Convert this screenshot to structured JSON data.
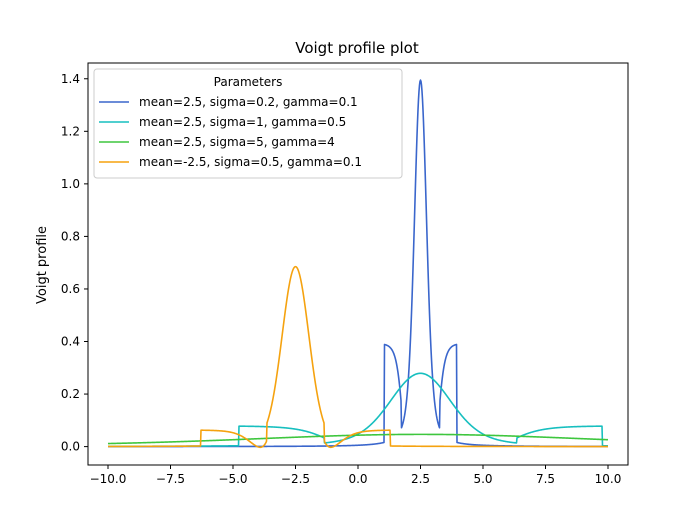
{
  "chart_data": {
    "type": "line",
    "title": "Voigt profile plot",
    "xlabel": "",
    "ylabel": "Voigt profile",
    "xlim": [
      -10.8,
      10.8
    ],
    "ylim": [
      -0.07,
      1.46
    ],
    "x_ticks": [
      -10.0,
      -7.5,
      -5.0,
      -2.5,
      0.0,
      2.5,
      5.0,
      7.5,
      10.0
    ],
    "x_tick_labels": [
      "−10.0",
      "−7.5",
      "−5.0",
      "−2.5",
      "0.0",
      "2.5",
      "5.0",
      "7.5",
      "10.0"
    ],
    "y_ticks": [
      0.0,
      0.2,
      0.4,
      0.6,
      0.8,
      1.0,
      1.2,
      1.4
    ],
    "y_tick_labels": [
      "0.0",
      "0.2",
      "0.4",
      "0.6",
      "0.8",
      "1.0",
      "1.2",
      "1.4"
    ],
    "grid": false,
    "legend": {
      "title": "Parameters",
      "placement": "top-left"
    },
    "series": [
      {
        "name": "mean=2.5, sigma=0.2, gamma=0.1",
        "color": "#3a66cc",
        "mean": 2.5,
        "sigma": 0.2,
        "gamma": 0.1
      },
      {
        "name": "mean=2.5, sigma=1, gamma=0.5",
        "color": "#17bfbf",
        "mean": 2.5,
        "sigma": 1,
        "gamma": 0.5
      },
      {
        "name": "mean=2.5, sigma=5, gamma=4",
        "color": "#3ec63e",
        "mean": 2.5,
        "sigma": 5,
        "gamma": 4
      },
      {
        "name": "mean=-2.5, sigma=0.5, gamma=0.1",
        "color": "#f5a20f",
        "mean": -2.5,
        "sigma": 0.5,
        "gamma": 0.1
      }
    ]
  }
}
